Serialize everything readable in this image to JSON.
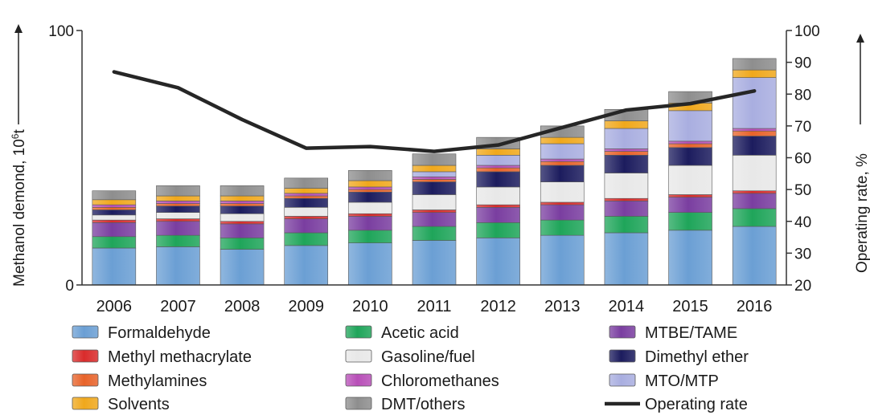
{
  "chart_data": {
    "type": "bar",
    "stacked": true,
    "categories": [
      "2006",
      "2007",
      "2008",
      "2009",
      "2010",
      "2011",
      "2012",
      "2013",
      "2014",
      "2015",
      "2016"
    ],
    "ylabel_left": "Methanol demond, 10",
    "ylabel_left_sup": "6",
    "ylabel_left_unit": "t",
    "ylabel_right": "Operating rate, %",
    "y_left": {
      "min": 0,
      "max": 100,
      "ticks": [
        0,
        100
      ]
    },
    "y_right": {
      "min": 20,
      "max": 100,
      "ticks": [
        20,
        30,
        40,
        50,
        60,
        70,
        80,
        90,
        100
      ]
    },
    "series": [
      {
        "name": "Formaldehyde",
        "color": "#6b9fd4",
        "values": [
          14.5,
          15,
          14,
          15.5,
          16.5,
          17.5,
          18.5,
          19.5,
          20.5,
          21.5,
          23
        ]
      },
      {
        "name": "Acetic acid",
        "color": "#1fa55a",
        "values": [
          4.5,
          4.5,
          4.5,
          5,
          5,
          5.5,
          6,
          6,
          6.5,
          7,
          7
        ]
      },
      {
        "name": "MTBE/TAME",
        "color": "#7a3ea0",
        "values": [
          5.5,
          5.5,
          5.5,
          5.5,
          5.5,
          5.5,
          6,
          6,
          6,
          6,
          6
        ]
      },
      {
        "name": "Methyl methacrylate",
        "color": "#d92b2b",
        "values": [
          1,
          1,
          1,
          1,
          1,
          1,
          1,
          1,
          1,
          1,
          1
        ]
      },
      {
        "name": "Gasoline/fuel",
        "color": "#e8e8e8",
        "values": [
          2,
          2.5,
          3,
          3.5,
          4.5,
          6,
          7,
          8,
          10,
          11.5,
          14
        ]
      },
      {
        "name": "Dimethyl ether",
        "color": "#1c1c5e",
        "values": [
          2,
          2.5,
          3,
          3.5,
          4,
          5,
          6,
          6.5,
          7,
          7,
          7.5
        ]
      },
      {
        "name": "Methylamines",
        "color": "#e8632a",
        "values": [
          1,
          1,
          1,
          1,
          1,
          1,
          1.5,
          1.5,
          1.5,
          1.5,
          2
        ]
      },
      {
        "name": "Chloromethanes",
        "color": "#b84fb8",
        "values": [
          1,
          1,
          1,
          1,
          1,
          1,
          1,
          1,
          1,
          1,
          1
        ]
      },
      {
        "name": "MTO/MTP",
        "color": "#a9aee0",
        "values": [
          0,
          0,
          0,
          0,
          0,
          2,
          4,
          6,
          8,
          12,
          20
        ]
      },
      {
        "name": "Solvents",
        "color": "#f0a81c",
        "values": [
          2,
          2,
          2,
          2,
          2.5,
          2.5,
          2.5,
          2.5,
          3,
          3,
          3
        ]
      },
      {
        "name": "DMT/others",
        "color": "#8e8e8e",
        "values": [
          3.5,
          4,
          4,
          4,
          4,
          4.5,
          4.5,
          4.5,
          4.5,
          4.5,
          4.5
        ]
      }
    ],
    "line": {
      "name": "Operating rate",
      "color": "#262626",
      "values": [
        87,
        82,
        72,
        63,
        63.5,
        62,
        64,
        69.5,
        75,
        77,
        81
      ]
    },
    "legend": [
      {
        "name": "Formaldehyde",
        "color": "#6b9fd4",
        "type": "box"
      },
      {
        "name": "Acetic acid",
        "color": "#1fa55a",
        "type": "box"
      },
      {
        "name": "MTBE/TAME",
        "color": "#7a3ea0",
        "type": "box"
      },
      {
        "name": "Methyl methacrylate",
        "color": "#d92b2b",
        "type": "box"
      },
      {
        "name": "Gasoline/fuel",
        "color": "#e8e8e8",
        "type": "box"
      },
      {
        "name": "Dimethyl ether",
        "color": "#1c1c5e",
        "type": "box"
      },
      {
        "name": "Methylamines",
        "color": "#e8632a",
        "type": "box"
      },
      {
        "name": "Chloromethanes",
        "color": "#b84fb8",
        "type": "box"
      },
      {
        "name": "MTO/MTP",
        "color": "#a9aee0",
        "type": "box"
      },
      {
        "name": "Solvents",
        "color": "#f0a81c",
        "type": "box"
      },
      {
        "name": "DMT/others",
        "color": "#8e8e8e",
        "type": "box"
      },
      {
        "name": "Operating rate",
        "color": "#262626",
        "type": "line"
      }
    ],
    "legend_position": "bottom",
    "grid": false
  }
}
